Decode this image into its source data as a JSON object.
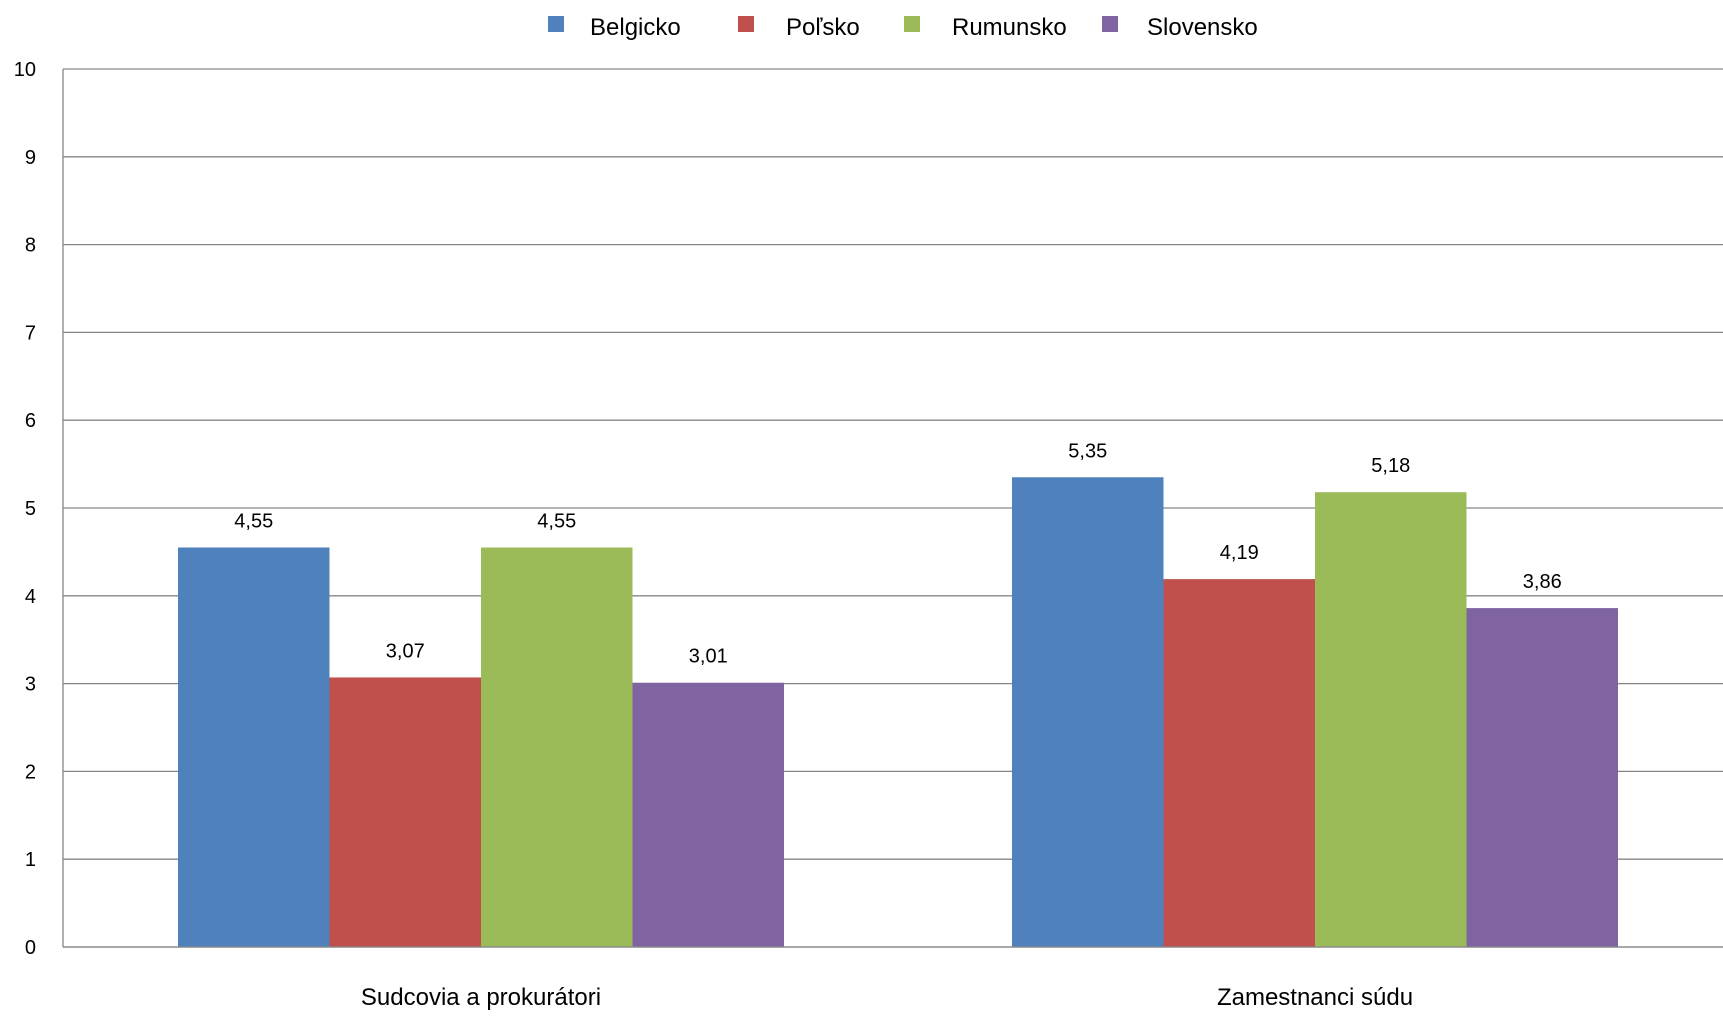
{
  "chart_data": {
    "type": "bar",
    "title": "",
    "xlabel": "",
    "ylabel": "",
    "categories": [
      "Sudcovia a prokurátori",
      "Zamestnanci  súdu"
    ],
    "series": [
      {
        "name": "Belgicko",
        "values": [
          4.55,
          5.35
        ],
        "labels": [
          "4,55",
          "5,35"
        ],
        "color": "#4F81BD"
      },
      {
        "name": "Poľsko",
        "values": [
          3.07,
          4.19
        ],
        "labels": [
          "3,07",
          "4,19"
        ],
        "color": "#C0504D"
      },
      {
        "name": "Rumunsko",
        "values": [
          4.55,
          5.18
        ],
        "labels": [
          "4,55",
          "5,18"
        ],
        "color": "#9BBB59"
      },
      {
        "name": "Slovensko",
        "values": [
          3.01,
          3.86
        ],
        "labels": [
          "3,01",
          "3,86"
        ],
        "color": "#8064A2"
      }
    ],
    "ylim": [
      0,
      10
    ],
    "yticks": [
      0,
      1,
      2,
      3,
      4,
      5,
      6,
      7,
      8,
      9,
      10
    ],
    "ytick_labels": [
      "0",
      "1",
      "2",
      "3",
      "4",
      "5",
      "6",
      "7",
      "8",
      "9",
      "10"
    ],
    "grid": true,
    "legend_position": "top"
  }
}
